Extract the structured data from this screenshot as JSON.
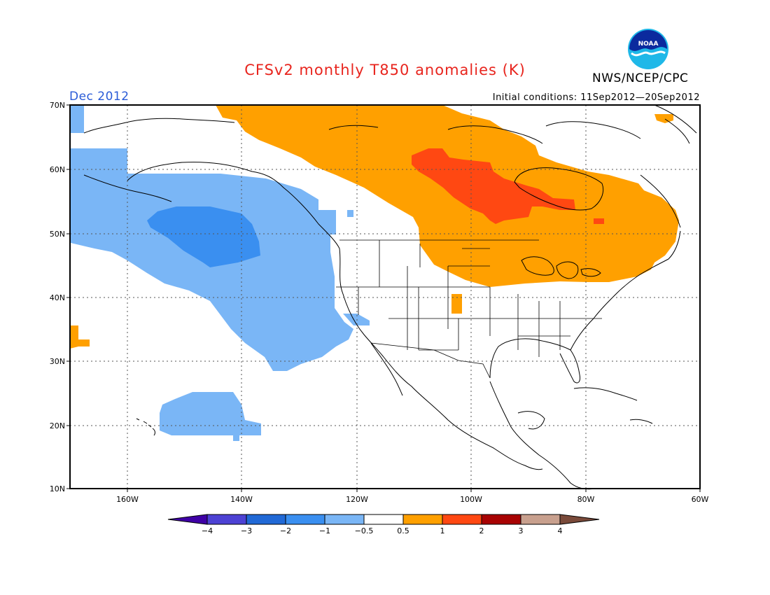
{
  "header": {
    "title": "CFSv2 monthly T850 anomalies (K)",
    "org": "NWS/NCEP/CPC",
    "logo_text": "NOAA",
    "month": "Dec 2012",
    "initial_conditions": "Initial conditions: 11Sep2012—20Sep2012"
  },
  "map": {
    "lat_labels": [
      "70N",
      "60N",
      "50N",
      "40N",
      "30N",
      "20N",
      "10N"
    ],
    "lon_labels": [
      "160W",
      "140W",
      "120W",
      "100W",
      "80W",
      "60W"
    ]
  },
  "colorbar": {
    "labels": [
      "−4",
      "−3",
      "−2",
      "−1",
      "−0.5",
      "0.5",
      "1",
      "2",
      "3",
      "4"
    ],
    "colors": [
      "#3f00a6",
      "#4d42d4",
      "#2169d6",
      "#3a8ff0",
      "#7ab6f6",
      "#ffffff",
      "#ffa000",
      "#ff4812",
      "#a80303",
      "#c8a08e",
      "#7a4a3a"
    ]
  },
  "colors": {
    "title": "#e8251e",
    "month": "#2a5bd7",
    "warm": "#ffa000",
    "hot": "#ff4812",
    "cool": "#7ab6f6",
    "cooler": "#3a8ff0"
  }
}
